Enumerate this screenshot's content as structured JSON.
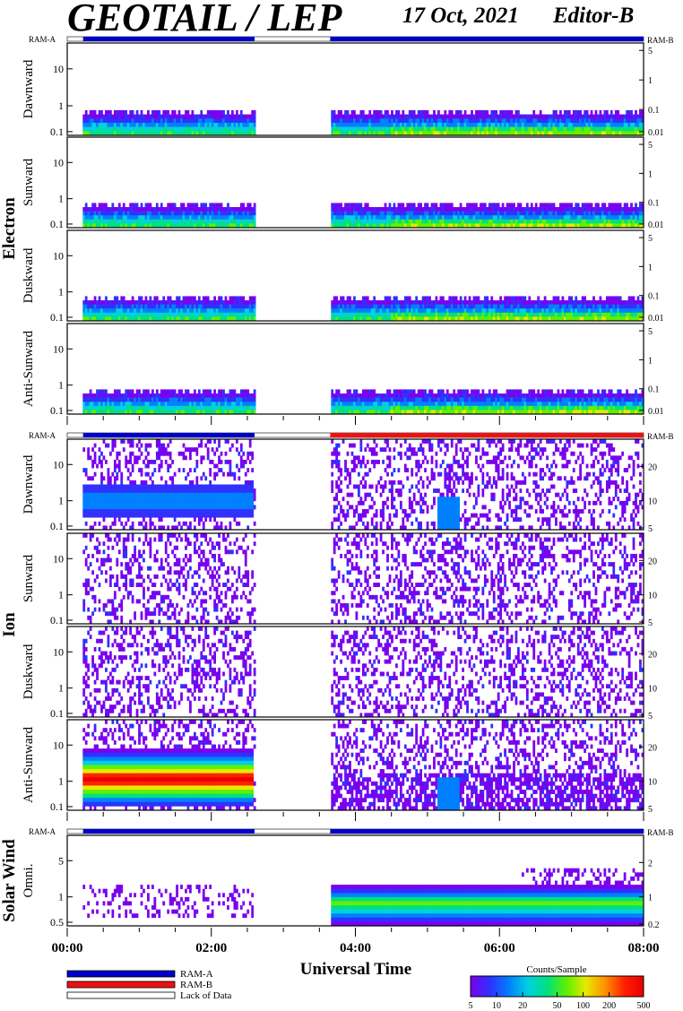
{
  "header": {
    "title": "GEOTAIL / LEP",
    "date": "17 Oct, 2021",
    "editor": "Editor-B"
  },
  "ram_labels": {
    "left": "RAM-A",
    "right": "RAM-B"
  },
  "sections": [
    {
      "name": "Electron",
      "panels": [
        {
          "label": "Dawnward",
          "yticks": [
            "10",
            "1",
            "0.1"
          ],
          "rticks": [
            "5",
            "1",
            "0.1",
            "0.01"
          ]
        },
        {
          "label": "Sunward",
          "yticks": [
            "10",
            "1",
            "0.1"
          ],
          "rticks": [
            "5",
            "1",
            "0.1",
            "0.01"
          ]
        },
        {
          "label": "Duskward",
          "yticks": [
            "10",
            "1",
            "0.1"
          ],
          "rticks": [
            "5",
            "1",
            "0.1",
            "0.01"
          ]
        },
        {
          "label": "Anti-Sunward",
          "yticks": [
            "10",
            "1",
            "0.1"
          ],
          "rticks": [
            "5",
            "1",
            "0.1",
            "0.01"
          ]
        }
      ]
    },
    {
      "name": "Ion",
      "panels": [
        {
          "label": "Dawnward",
          "yticks": [
            "10",
            "1",
            "0.1"
          ],
          "rticks": [
            "20",
            "10",
            "5"
          ]
        },
        {
          "label": "Sunward",
          "yticks": [
            "10",
            "1",
            "0.1"
          ],
          "rticks": [
            "20",
            "10",
            "5"
          ]
        },
        {
          "label": "Duskward",
          "yticks": [
            "10",
            "1",
            "0.1"
          ],
          "rticks": [
            "20",
            "10",
            "5"
          ]
        },
        {
          "label": "Anti-Sunward",
          "yticks": [
            "10",
            "1",
            "0.1"
          ],
          "rticks": [
            "20",
            "10",
            "5"
          ]
        }
      ]
    },
    {
      "name": "Solar Wind",
      "panels": [
        {
          "label": "Omni.",
          "yticks": [
            "5",
            "1",
            "0.5"
          ],
          "rticks": [
            "2",
            "1",
            "0.2"
          ]
        }
      ]
    }
  ],
  "chart_data": {
    "type": "heatmap",
    "xlabel": "Universal Time",
    "xticks": [
      "00:00",
      "02:00",
      "04:00",
      "06:00",
      "08:00"
    ],
    "xlim_hours": [
      0,
      8
    ],
    "data_gap_hours": [
      2.6,
      3.65
    ],
    "data_start_hours": 0.22,
    "ram_state_electron": [
      [
        "A",
        0.22,
        2.6
      ],
      [
        "A",
        3.65,
        8.0
      ]
    ],
    "ram_state_ion": [
      [
        "A",
        0.22,
        2.6
      ],
      [
        "B",
        3.65,
        8.0
      ]
    ],
    "ram_state_solarwind": [
      [
        "A",
        0.22,
        2.6
      ],
      [
        "A",
        3.65,
        8.0
      ]
    ]
  },
  "legend": {
    "items": [
      {
        "label": "RAM-A",
        "color": "#0000cc"
      },
      {
        "label": "RAM-B",
        "color": "#ee1111"
      },
      {
        "label": "Lack of Data",
        "color": "#ffffff"
      }
    ]
  },
  "colorbar": {
    "title": "Counts/Sample",
    "ticks": [
      "5",
      "10",
      "20",
      "50",
      "100",
      "200",
      "500"
    ],
    "colors": [
      "#7a00ee",
      "#3030ff",
      "#0080ff",
      "#00d0e0",
      "#00e080",
      "#60f000",
      "#e8e800",
      "#ff9000",
      "#ff2000",
      "#e80000"
    ]
  }
}
